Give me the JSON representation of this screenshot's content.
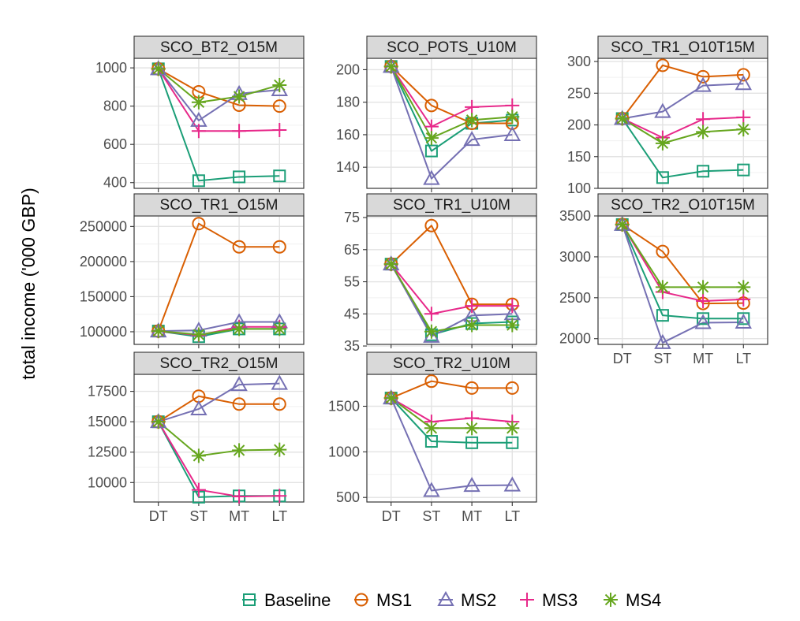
{
  "chart_data": {
    "type": "line",
    "ylabel": "total income ('000 GBP)",
    "categories": [
      "DT",
      "ST",
      "MT",
      "LT"
    ],
    "series_styles": [
      {
        "name": "Baseline",
        "color": "#1b9e77",
        "shape": "square"
      },
      {
        "name": "MS1",
        "color": "#d95f02",
        "shape": "circle"
      },
      {
        "name": "MS2",
        "color": "#7570b3",
        "shape": "triangle"
      },
      {
        "name": "MS3",
        "color": "#e7298a",
        "shape": "plus"
      },
      {
        "name": "MS4",
        "color": "#66a61e",
        "shape": "asterisk"
      }
    ],
    "legend": {
      "position": "bottom",
      "labels": [
        "Baseline",
        "MS1",
        "MS2",
        "MS3",
        "MS4"
      ]
    },
    "grid": true,
    "panels": [
      {
        "title": "SCO_BT2_O15M",
        "ylim": [
          370,
          1050
        ],
        "yticks": [
          400,
          600,
          800,
          1000
        ],
        "ytick_labels": [
          "400",
          "600",
          "800",
          "1000"
        ],
        "series": [
          {
            "name": "Baseline",
            "values": [
              995,
              410,
              430,
              435
            ]
          },
          {
            "name": "MS1",
            "values": [
              995,
              875,
              805,
              800
            ]
          },
          {
            "name": "MS2",
            "values": [
              995,
              725,
              865,
              885
            ]
          },
          {
            "name": "MS3",
            "values": [
              995,
              670,
              670,
              675
            ]
          },
          {
            "name": "MS4",
            "values": [
              995,
              820,
              850,
              910
            ]
          }
        ]
      },
      {
        "title": "SCO_POTS_U10M",
        "ylim": [
          127,
          207
        ],
        "yticks": [
          140,
          160,
          180,
          200
        ],
        "ytick_labels": [
          "140",
          "160",
          "180",
          "200"
        ],
        "series": [
          {
            "name": "Baseline",
            "values": [
              202,
              150,
              167,
              169
            ]
          },
          {
            "name": "MS1",
            "values": [
              202,
              178,
              167,
              167
            ]
          },
          {
            "name": "MS2",
            "values": [
              202,
              133,
              157,
              160
            ]
          },
          {
            "name": "MS3",
            "values": [
              202,
              165,
              177,
              178
            ]
          },
          {
            "name": "MS4",
            "values": [
              202,
              158,
              169,
              171
            ]
          }
        ]
      },
      {
        "title": "SCO_TR1_O10T15M",
        "ylim": [
          100,
          305
        ],
        "yticks": [
          100,
          150,
          200,
          250,
          300
        ],
        "ytick_labels": [
          "100",
          "150",
          "200",
          "250",
          "300"
        ],
        "series": [
          {
            "name": "Baseline",
            "values": [
              210,
              117,
              127,
              129
            ]
          },
          {
            "name": "MS1",
            "values": [
              210,
              294,
              276,
              279
            ]
          },
          {
            "name": "MS2",
            "values": [
              210,
              221,
              262,
              265
            ]
          },
          {
            "name": "MS3",
            "values": [
              210,
              180,
              209,
              212
            ]
          },
          {
            "name": "MS4",
            "values": [
              210,
              171,
              189,
              193
            ]
          }
        ]
      },
      {
        "title": "SCO_TR1_O15M",
        "ylim": [
          82000,
          265000
        ],
        "yticks": [
          100000,
          150000,
          200000,
          250000
        ],
        "ytick_labels": [
          "100000",
          "150000",
          "200000",
          "250000"
        ],
        "series": [
          {
            "name": "Baseline",
            "values": [
              101000,
              93000,
              104000,
              104000
            ]
          },
          {
            "name": "MS1",
            "values": [
              101000,
              254000,
              221000,
              221000
            ]
          },
          {
            "name": "MS2",
            "values": [
              101000,
              102000,
              114000,
              114000
            ]
          },
          {
            "name": "MS3",
            "values": [
              101000,
              95000,
              107000,
              107000
            ]
          },
          {
            "name": "MS4",
            "values": [
              101000,
              96000,
              104000,
              104000
            ]
          }
        ]
      },
      {
        "title": "SCO_TR1_U10M",
        "ylim": [
          35.5,
          75.5
        ],
        "yticks": [
          35,
          45,
          55,
          65,
          75
        ],
        "ytick_labels": [
          "35",
          "45",
          "55",
          "65",
          "75"
        ],
        "series": [
          {
            "name": "Baseline",
            "values": [
              60.5,
              38.5,
              42,
              42.5
            ]
          },
          {
            "name": "MS1",
            "values": [
              60.5,
              72.5,
              48,
              48
            ]
          },
          {
            "name": "MS2",
            "values": [
              60.5,
              38,
              44.5,
              45
            ]
          },
          {
            "name": "MS3",
            "values": [
              60.5,
              45,
              47.5,
              47.5
            ]
          },
          {
            "name": "MS4",
            "values": [
              60.5,
              39.5,
              41.5,
              41.5
            ]
          }
        ]
      },
      {
        "title": "SCO_TR2_O10T15M",
        "ylim": [
          1930,
          3500
        ],
        "yticks": [
          2000,
          2500,
          3000,
          3500
        ],
        "ytick_labels": [
          "2000",
          "2500",
          "3000",
          "3500"
        ],
        "series": [
          {
            "name": "Baseline",
            "values": [
              3395,
              2285,
              2245,
              2245
            ]
          },
          {
            "name": "MS1",
            "values": [
              3395,
              3065,
              2430,
              2435
            ]
          },
          {
            "name": "MS2",
            "values": [
              3395,
              1950,
              2195,
              2200
            ]
          },
          {
            "name": "MS3",
            "values": [
              3395,
              2570,
              2460,
              2480
            ]
          },
          {
            "name": "MS4",
            "values": [
              3395,
              2630,
              2630,
              2630
            ]
          }
        ]
      },
      {
        "title": "SCO_TR2_O15M",
        "ylim": [
          8400,
          18900
        ],
        "yticks": [
          10000,
          12500,
          15000,
          17500
        ],
        "ytick_labels": [
          "10000",
          "12500",
          "15000",
          "17500"
        ],
        "series": [
          {
            "name": "Baseline",
            "values": [
              15000,
              8800,
              8900,
              8900
            ]
          },
          {
            "name": "MS1",
            "values": [
              15000,
              17100,
              16450,
              16450
            ]
          },
          {
            "name": "MS2",
            "values": [
              15000,
              16050,
              18050,
              18150
            ]
          },
          {
            "name": "MS3",
            "values": [
              15000,
              9400,
              8850,
              8900
            ]
          },
          {
            "name": "MS4",
            "values": [
              15000,
              12200,
              12650,
              12700
            ]
          }
        ]
      },
      {
        "title": "SCO_TR2_U10M",
        "ylim": [
          450,
          1850
        ],
        "yticks": [
          500,
          1000,
          1500
        ],
        "ytick_labels": [
          "500",
          "1000",
          "1500"
        ],
        "series": [
          {
            "name": "Baseline",
            "values": [
              1590,
              1115,
              1100,
              1100
            ]
          },
          {
            "name": "MS1",
            "values": [
              1590,
              1775,
              1700,
              1700
            ]
          },
          {
            "name": "MS2",
            "values": [
              1590,
              575,
              630,
              635
            ]
          },
          {
            "name": "MS3",
            "values": [
              1590,
              1330,
              1370,
              1330
            ]
          },
          {
            "name": "MS4",
            "values": [
              1590,
              1260,
              1260,
              1260
            ]
          }
        ]
      }
    ]
  }
}
